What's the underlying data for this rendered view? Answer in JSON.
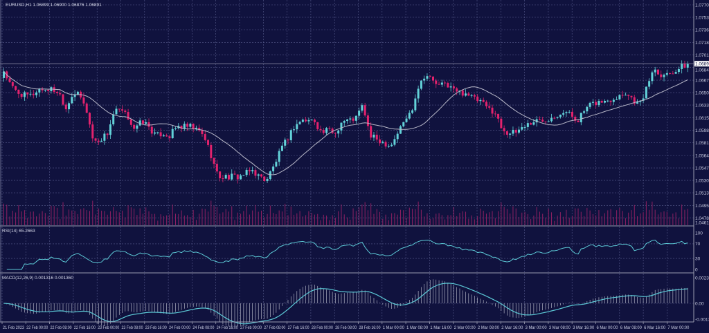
{
  "chart_data": {
    "type": "candlestick",
    "title": "EURUSD,H1  1.06899 1.06900 1.06876 1.06891",
    "symbol": "EURUSD,H1",
    "current_price_label": "1.06895",
    "price_ticks": [
      "1.07700",
      "1.07530",
      "1.07360",
      "1.07185",
      "1.07015",
      "1.06845",
      "1.06670",
      "1.06500",
      "1.06330",
      "1.06155",
      "1.05985",
      "1.05815",
      "1.05640",
      "1.05470",
      "1.05300",
      "1.05130",
      "1.04955",
      "1.04785",
      "1.04615"
    ],
    "ylim": [
      1.04615,
      1.077
    ],
    "time_ticks": [
      "21 Feb 2023",
      "22 Feb 00:00",
      "22 Feb 08:00",
      "22 Feb 16:00",
      "23 Feb 00:00",
      "23 Feb 08:00",
      "23 Feb 16:00",
      "24 Feb 00:00",
      "24 Feb 08:00",
      "24 Feb 16:00",
      "27 Feb 00:00",
      "27 Feb 08:00",
      "27 Feb 16:00",
      "28 Feb 00:00",
      "28 Feb 08:00",
      "28 Feb 16:00",
      "1 Mar 00:00",
      "1 Mar 08:00",
      "1 Mar 16:00",
      "2 Mar 00:00",
      "2 Mar 08:00",
      "2 Mar 16:00",
      "3 Mar 00:00",
      "3 Mar 08:00",
      "3 Mar 16:00",
      "6 Mar 00:00",
      "6 Mar 08:00",
      "6 Mar 16:00",
      "7 Mar 00:00"
    ],
    "approx_closes": [
      1.068,
      1.06587,
      1.06501,
      1.06459,
      1.06459,
      1.06544,
      1.06544,
      1.06544,
      1.06501,
      1.06288,
      1.06501,
      1.06459,
      1.06246,
      1.05819,
      1.05862,
      1.05947,
      1.06246,
      1.06246,
      1.0616,
      1.0599,
      1.06118,
      1.06032,
      1.05904,
      1.05947,
      1.05904,
      1.06032,
      1.06032,
      1.06032,
      1.0599,
      1.05904,
      1.05648,
      1.0535,
      1.0535,
      1.0535,
      1.0535,
      1.05393,
      1.05435,
      1.0535,
      1.05307,
      1.05478,
      1.05691,
      1.05862,
      1.06032,
      1.06118,
      1.06118,
      1.06118,
      1.05947,
      1.0599,
      1.05947,
      1.06118,
      1.06118,
      1.0616,
      1.06331,
      1.05904,
      1.05862,
      1.05819,
      1.05776,
      1.05947,
      1.06118,
      1.06246,
      1.06587,
      1.06757,
      1.06672,
      1.06587,
      1.06629,
      1.06544,
      1.06501,
      1.06501,
      1.06416,
      1.06374,
      1.06288,
      1.06246,
      1.06032,
      1.05947,
      1.05947,
      1.06032,
      1.06075,
      1.06118,
      1.06118,
      1.0616,
      1.06203,
      1.06246,
      1.06203,
      1.06118,
      1.06246,
      1.06331,
      1.06374,
      1.06374,
      1.06416,
      1.06459,
      1.06501,
      1.06416,
      1.06331,
      1.06544,
      1.06843,
      1.06757,
      1.06757,
      1.068,
      1.06843,
      1.06891
    ],
    "moving_average": {
      "period": 20,
      "color": "#b9b9c9"
    },
    "rsi": {
      "label": "RSI(14) 65.2663",
      "ticks": [
        "100",
        "70",
        "30",
        "0"
      ],
      "levels": [
        100,
        70,
        30,
        0
      ],
      "color": "#5cc9d6"
    },
    "macd": {
      "label": "MACD(12,26,9) 0.001316 0.001360",
      "ticks": [
        "0.002377",
        "0.00",
        "-0.001773"
      ],
      "range": [
        -0.001773,
        0.002377
      ],
      "color": "#5cc9d6"
    },
    "colors": {
      "background": "#10123e",
      "bull": "#63d2d9",
      "bear": "#e3226d",
      "volume": "#8e2062",
      "grid": "#565b8c"
    },
    "grid": true
  }
}
